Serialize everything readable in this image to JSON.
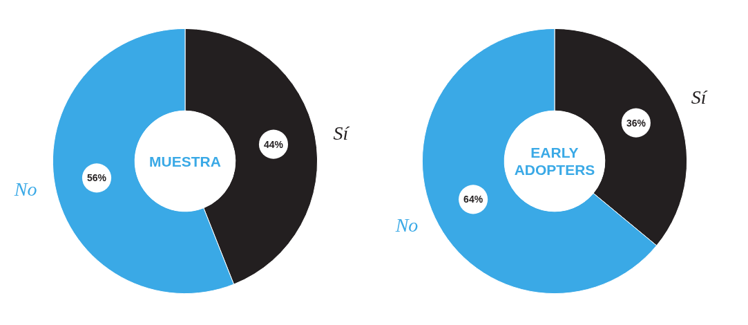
{
  "chart_data": [
    {
      "type": "donut",
      "title": "MUESTRA",
      "categories": [
        "Sí",
        "No"
      ],
      "values": [
        44,
        56
      ],
      "colors": [
        "#231f20",
        "#3aa9e6"
      ],
      "value_labels": [
        "44%",
        "56%"
      ]
    },
    {
      "type": "donut",
      "title": "EARLY ADOPTERS",
      "categories": [
        "Sí",
        "No"
      ],
      "values": [
        36,
        64
      ],
      "colors": [
        "#231f20",
        "#3aa9e6"
      ],
      "value_labels": [
        "36%",
        "64%"
      ]
    }
  ]
}
